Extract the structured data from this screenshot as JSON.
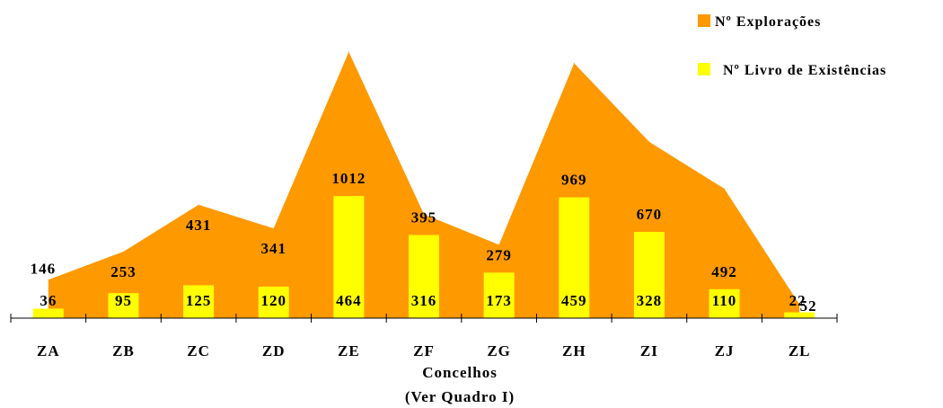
{
  "chart_data": {
    "type": "bar",
    "xlabel": "Concelhos",
    "xlabel_sub": "(Ver Quadro I)",
    "categories": [
      "ZA",
      "ZB",
      "ZC",
      "ZD",
      "ZE",
      "ZF",
      "ZG",
      "ZH",
      "ZI",
      "ZJ",
      "ZL"
    ],
    "series": [
      {
        "name": "Nº Explorações",
        "chart_type": "area",
        "color": "#FF9900",
        "values": [
          146,
          253,
          431,
          341,
          1012,
          395,
          279,
          969,
          670,
          492,
          52
        ]
      },
      {
        "name": "Nº Livro de Existências",
        "chart_type": "bar",
        "color": "#FFFF00",
        "values": [
          36,
          95,
          125,
          120,
          464,
          316,
          173,
          459,
          328,
          110,
          22
        ]
      }
    ],
    "ylim": [
      0,
      1100
    ],
    "grid": false,
    "legend": "top-right"
  }
}
